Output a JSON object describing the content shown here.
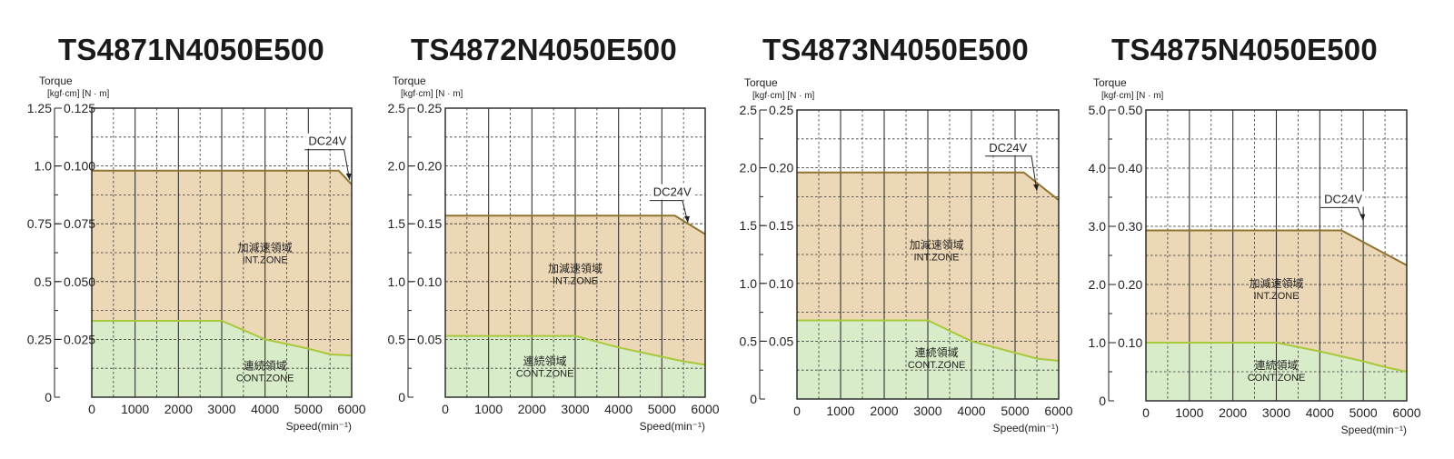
{
  "chart_data": [
    {
      "type": "area",
      "title": "TS4871N4050E500",
      "ylabel": "Torque",
      "yunits": "[kgf·cm] [N · m]",
      "xlabel": "Speed(min⁻¹)",
      "xlim": [
        0,
        6000
      ],
      "ylim_nm": [
        0,
        0.125
      ],
      "yticks_kgfcm": [
        "1.25",
        "1.0",
        "0.75",
        "0.5",
        "0.25",
        "0"
      ],
      "yticks_nm": [
        "0.125",
        "0.100",
        "0.075",
        "0.050",
        "0.025",
        ""
      ],
      "xticks": [
        "0",
        "1000",
        "2000",
        "3000",
        "4000",
        "5000",
        "6000"
      ],
      "grid": true,
      "series": [
        {
          "x": [
            0,
            5700,
            6000
          ],
          "y": [
            0.098,
            0.098,
            0.092
          ]
        },
        {
          "x": [
            0,
            3000,
            4000,
            5000,
            5500,
            6000
          ],
          "y": [
            0.033,
            0.033,
            0.025,
            0.021,
            0.0185,
            0.018
          ]
        }
      ],
      "int_zone_label": [
        "加減速領域",
        "INT.ZONE"
      ],
      "int_zone_at": [
        4000,
        0.063
      ],
      "cont_zone_label": [
        "連続領域",
        "CONT.ZONE"
      ],
      "cont_zone_at": [
        4000,
        0.012
      ],
      "annotation": {
        "text": "DC24V",
        "at": [
          5000,
          0.109
        ],
        "target": [
          5950,
          0.094
        ]
      }
    },
    {
      "type": "area",
      "title": "TS4872N4050E500",
      "ylabel": "Torque",
      "yunits": "[kgf·cm] [N · m]",
      "xlabel": "Speed(min⁻¹)",
      "xlim": [
        0,
        6000
      ],
      "ylim_nm": [
        0,
        0.25
      ],
      "yticks_kgfcm": [
        "2.5",
        "2.0",
        "1.5",
        "1.0",
        "0.5",
        "0"
      ],
      "yticks_nm": [
        "0.25",
        "0.20",
        "0.15",
        "0.10",
        "0.05",
        ""
      ],
      "xticks": [
        "0",
        "1000",
        "2000",
        "3000",
        "4000",
        "5000",
        "6000"
      ],
      "grid": true,
      "series": [
        {
          "x": [
            0,
            5300,
            6000
          ],
          "y": [
            0.157,
            0.157,
            0.141
          ]
        },
        {
          "x": [
            0,
            3000,
            4000,
            5000,
            5500,
            6000
          ],
          "y": [
            0.053,
            0.053,
            0.043,
            0.035,
            0.031,
            0.028
          ]
        }
      ],
      "int_zone_label": [
        "加減速領域",
        "INT.ZONE"
      ],
      "int_zone_at": [
        3000,
        0.108
      ],
      "cont_zone_label": [
        "連続領域",
        "CONT.ZONE"
      ],
      "cont_zone_at": [
        2300,
        0.028
      ],
      "annotation": {
        "text": "DC24V",
        "at": [
          4800,
          0.174
        ],
        "target": [
          5600,
          0.151
        ]
      }
    },
    {
      "type": "area",
      "title": "TS4873N4050E500",
      "ylabel": "Torque",
      "yunits": "[kgf·cm] [N · m]",
      "xlabel": "Speed(min⁻¹)",
      "xlim": [
        0,
        6000
      ],
      "ylim_nm": [
        0,
        0.25
      ],
      "yticks_kgfcm": [
        "2.5",
        "2.0",
        "1.5",
        "1.0",
        "0.5",
        "0"
      ],
      "yticks_nm": [
        "0.25",
        "0.20",
        "0.15",
        "0.10",
        "0.05",
        ""
      ],
      "xticks": [
        "0",
        "1000",
        "2000",
        "3000",
        "4000",
        "5000",
        "6000"
      ],
      "grid": true,
      "series": [
        {
          "x": [
            0,
            5200,
            6000
          ],
          "y": [
            0.196,
            0.196,
            0.172
          ]
        },
        {
          "x": [
            0,
            3000,
            4000,
            5000,
            5500,
            6000
          ],
          "y": [
            0.068,
            0.068,
            0.05,
            0.04,
            0.035,
            0.033
          ]
        }
      ],
      "int_zone_label": [
        "加減速領域",
        "INT.ZONE"
      ],
      "int_zone_at": [
        3200,
        0.13
      ],
      "cont_zone_label": [
        "連続領域",
        "CONT.ZONE"
      ],
      "cont_zone_at": [
        3200,
        0.037
      ],
      "annotation": {
        "text": "DC24V",
        "at": [
          4400,
          0.214
        ],
        "target": [
          5500,
          0.18
        ]
      }
    },
    {
      "type": "area",
      "title": "TS4875N4050E500",
      "ylabel": "Torque",
      "yunits": "[kgf·cm] [N · m]",
      "xlabel": "Speed(min⁻¹)",
      "xlim": [
        0,
        6000
      ],
      "ylim_nm": [
        0,
        0.5
      ],
      "yticks_kgfcm": [
        "5.0",
        "4.0",
        "3.0",
        "2.0",
        "1.0",
        "0"
      ],
      "yticks_nm": [
        "0.50",
        "0.40",
        "0.30",
        "0.20",
        "0.10",
        ""
      ],
      "xticks": [
        "0",
        "1000",
        "2000",
        "3000",
        "4000",
        "5000",
        "6000"
      ],
      "grid": true,
      "series": [
        {
          "x": [
            0,
            4500,
            6000
          ],
          "y": [
            0.293,
            0.293,
            0.233
          ]
        },
        {
          "x": [
            0,
            3000,
            4000,
            5000,
            5500,
            6000
          ],
          "y": [
            0.1,
            0.1,
            0.085,
            0.068,
            0.058,
            0.05
          ]
        }
      ],
      "int_zone_label": [
        "加減速領域",
        "INT.ZONE"
      ],
      "int_zone_at": [
        3000,
        0.195
      ],
      "cont_zone_label": [
        "連続領域",
        "CONT.ZONE"
      ],
      "cont_zone_at": [
        3000,
        0.055
      ],
      "annotation": {
        "text": "DC24V",
        "at": [
          4100,
          0.34
        ],
        "target": [
          5000,
          0.31
        ]
      }
    }
  ]
}
